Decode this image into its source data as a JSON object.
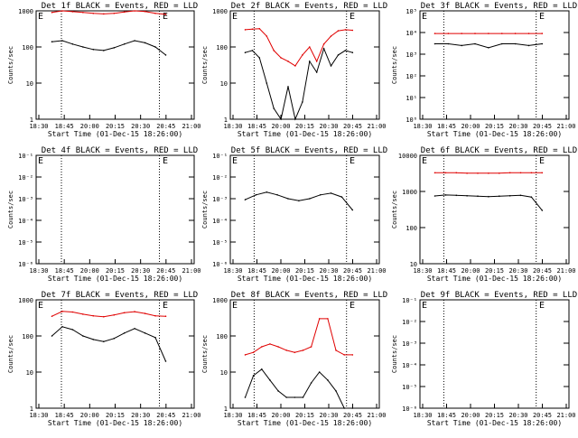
{
  "panels_text": {
    "ylabel": "Counts/sec",
    "xlabel": "Start Time (01-Dec-15 18:26:00)",
    "xticks": [
      "18:30",
      "18:45",
      "20:00",
      "20:15",
      "20:30",
      "20:45",
      "21:00"
    ],
    "event_marker": "E"
  },
  "colors": {
    "events": "#000000",
    "lld": "#e00000",
    "background": "#ffffff"
  },
  "chart_data": [
    {
      "type": "line",
      "title": "Det 1f BLACK = Events, RED = LLD",
      "yscale": "log",
      "yticks": [
        "1",
        "10",
        "100",
        "1000"
      ],
      "x": [
        0,
        1,
        2,
        3,
        4,
        5,
        6,
        7,
        8,
        9,
        10,
        11
      ],
      "series": [
        {
          "name": "Events",
          "color": "#000000",
          "values": [
            140,
            150,
            120,
            100,
            85,
            80,
            95,
            120,
            150,
            130,
            100,
            60
          ]
        },
        {
          "name": "LLD",
          "color": "#e00000",
          "values": [
            900,
            1000,
            950,
            900,
            850,
            820,
            850,
            930,
            1000,
            960,
            850,
            800
          ]
        }
      ]
    },
    {
      "type": "line",
      "title": "Det 2f BLACK = Events, RED = LLD",
      "yscale": "log",
      "yticks": [
        "1",
        "10",
        "100",
        "1000"
      ],
      "x": [
        0,
        1,
        2,
        3,
        4,
        5,
        6,
        7,
        8,
        9,
        10,
        11,
        12,
        13,
        14,
        15
      ],
      "series": [
        {
          "name": "Events",
          "color": "#000000",
          "values": [
            70,
            80,
            50,
            10,
            2,
            1,
            8,
            1,
            3,
            40,
            20,
            90,
            30,
            60,
            80,
            70
          ]
        },
        {
          "name": "LLD",
          "color": "#e00000",
          "values": [
            300,
            310,
            320,
            200,
            80,
            50,
            40,
            30,
            60,
            100,
            40,
            120,
            200,
            280,
            300,
            290
          ]
        }
      ]
    },
    {
      "type": "line",
      "title": "Det 3f BLACK = Events, RED = LLD",
      "yscale": "log",
      "yticks": [
        "10⁰",
        "10¹",
        "10²",
        "10³",
        "10⁴",
        "10⁵"
      ],
      "x": [
        0,
        1,
        2,
        3,
        4,
        5,
        6,
        7,
        8
      ],
      "series": [
        {
          "name": "Events",
          "color": "#000000",
          "values": [
            3000,
            3000,
            2500,
            3000,
            2000,
            3000,
            3000,
            2500,
            3000
          ]
        },
        {
          "name": "LLD",
          "color": "#e00000",
          "values": [
            9000,
            9000,
            9000,
            9000,
            9000,
            9000,
            9000,
            9000,
            9000
          ]
        }
      ]
    },
    {
      "type": "line",
      "title": "Det 4f BLACK = Events, RED = LLD",
      "yscale": "log",
      "yticks": [
        "10⁻⁶",
        "10⁻⁵",
        "10⁻⁴",
        "10⁻³",
        "10⁻²",
        "10⁻¹"
      ],
      "x": [],
      "series": []
    },
    {
      "type": "line",
      "title": "Det 5f BLACK = Events, RED = LLD",
      "yscale": "log",
      "yticks": [
        "10⁻⁶",
        "10⁻⁵",
        "10⁻⁴",
        "10⁻³",
        "10⁻²",
        "10⁻¹"
      ],
      "x": [
        0,
        1,
        2,
        3,
        4,
        5,
        6,
        7,
        8,
        9,
        10
      ],
      "series": [
        {
          "name": "Events",
          "color": "#000000",
          "values": [
            0.0009,
            0.0015,
            0.002,
            0.0015,
            0.001,
            0.0008,
            0.001,
            0.0015,
            0.0018,
            0.0012,
            0.0003
          ]
        }
      ]
    },
    {
      "type": "line",
      "title": "Det 6f BLACK = Events, RED = LLD",
      "yscale": "log",
      "yticks": [
        "10",
        "100",
        "1000",
        "10000"
      ],
      "x": [
        0,
        1,
        2,
        3,
        4,
        5,
        6,
        7,
        8,
        9,
        10
      ],
      "series": [
        {
          "name": "Events",
          "color": "#000000",
          "values": [
            750,
            800,
            780,
            760,
            740,
            720,
            740,
            760,
            780,
            700,
            300
          ]
        },
        {
          "name": "LLD",
          "color": "#e00000",
          "values": [
            3300,
            3300,
            3300,
            3200,
            3200,
            3200,
            3200,
            3300,
            3300,
            3300,
            3300
          ]
        }
      ]
    },
    {
      "type": "line",
      "title": "Det 7f BLACK = Events, RED = LLD",
      "yscale": "log",
      "yticks": [
        "1",
        "10",
        "100",
        "1000"
      ],
      "x": [
        0,
        1,
        2,
        3,
        4,
        5,
        6,
        7,
        8,
        9,
        10,
        11
      ],
      "series": [
        {
          "name": "Events",
          "color": "#000000",
          "values": [
            100,
            180,
            150,
            100,
            80,
            70,
            85,
            120,
            160,
            120,
            90,
            20
          ]
        },
        {
          "name": "LLD",
          "color": "#e00000",
          "values": [
            350,
            480,
            460,
            400,
            360,
            340,
            380,
            440,
            470,
            420,
            360,
            350
          ]
        }
      ]
    },
    {
      "type": "line",
      "title": "Det 8f BLACK = Events, RED = LLD",
      "yscale": "log",
      "yticks": [
        "1",
        "10",
        "100",
        "1000"
      ],
      "x": [
        0,
        1,
        2,
        3,
        4,
        5,
        6,
        7,
        8,
        9,
        10,
        11,
        12,
        13
      ],
      "series": [
        {
          "name": "Events",
          "color": "#000000",
          "values": [
            2,
            8,
            12,
            6,
            3,
            2,
            2,
            2,
            5,
            10,
            6,
            3,
            1,
            1
          ]
        },
        {
          "name": "LLD",
          "color": "#e00000",
          "values": [
            30,
            35,
            50,
            60,
            50,
            40,
            35,
            40,
            50,
            300,
            300,
            40,
            30,
            30
          ]
        }
      ]
    },
    {
      "type": "line",
      "title": "Det 9f BLACK = Events, RED = LLD",
      "yscale": "log",
      "yticks": [
        "10⁻⁶",
        "10⁻⁵",
        "10⁻⁴",
        "10⁻³",
        "10⁻²",
        "10⁻¹"
      ],
      "x": [],
      "series": []
    }
  ]
}
